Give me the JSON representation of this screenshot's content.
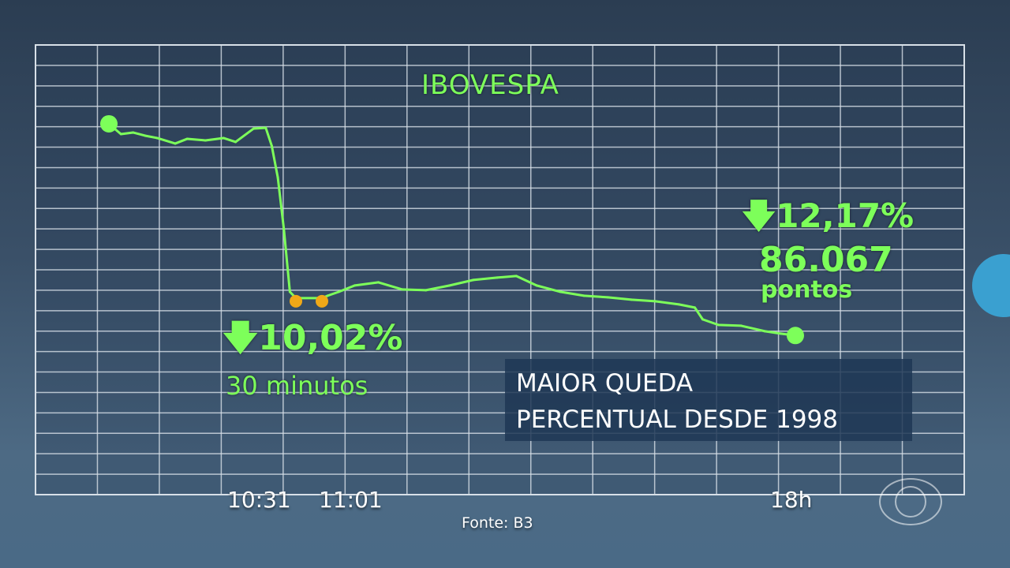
{
  "chart_data": {
    "type": "line",
    "title": "IBOVESPA",
    "xlabel": "",
    "ylabel": "",
    "x_tick_labels": [
      "10:31",
      "11:01",
      "18h"
    ],
    "grid": true,
    "ylim": [
      77100,
      102440
    ],
    "series": [
      {
        "color": "#7dff5a",
        "points": [
          [
            "10:00",
            97996
          ],
          [
            "10:02",
            97418
          ],
          [
            "10:04",
            97507
          ],
          [
            "10:06",
            97329
          ],
          [
            "10:08",
            97196
          ],
          [
            "10:11",
            96885
          ],
          [
            "10:13",
            97152
          ],
          [
            "10:16",
            97063
          ],
          [
            "10:19",
            97196
          ],
          [
            "10:21",
            96974
          ],
          [
            "10:24",
            97729
          ],
          [
            "10:26",
            97774
          ],
          [
            "10:27",
            96752
          ],
          [
            "10:28",
            94974
          ],
          [
            "10:29",
            92085
          ],
          [
            "10:30",
            88530
          ],
          [
            "10:31",
            88177
          ],
          [
            "11:01",
            88177
          ],
          [
            "11:06",
            88308
          ],
          [
            "11:16",
            88530
          ],
          [
            "11:30",
            88886
          ],
          [
            "11:51",
            89063
          ],
          [
            "12:12",
            88663
          ],
          [
            "12:33",
            88619
          ],
          [
            "12:54",
            88886
          ],
          [
            "13:15",
            89197
          ],
          [
            "13:36",
            89330
          ],
          [
            "13:53",
            89419
          ],
          [
            "14:11",
            88886
          ],
          [
            "14:32",
            88530
          ],
          [
            "14:53",
            88308
          ],
          [
            "15:14",
            88219
          ],
          [
            "15:35",
            88085
          ],
          [
            "15:56",
            87996
          ],
          [
            "16:17",
            87819
          ],
          [
            "16:31",
            87641
          ],
          [
            "16:38",
            86974
          ],
          [
            "16:52",
            86663
          ],
          [
            "17:12",
            86618
          ],
          [
            "17:33",
            86307
          ],
          [
            "17:47",
            86174
          ],
          [
            "18:00",
            86067
          ]
        ]
      }
    ],
    "halt_markers": [
      "10:31",
      "11:01"
    ],
    "halt_color": "#f0a818"
  },
  "annotations": {
    "halt_change": "10,02%",
    "halt_duration": "30 minutos",
    "close_change": "12,17%",
    "close_points": "86.067",
    "close_unit": "pontos",
    "note_line1": "MAIOR QUEDA",
    "note_line2": "PERCENTUAL DESDE 1998",
    "source": "Fonte: B3"
  },
  "icons": {
    "down_arrow": "arrow-down-icon",
    "broadcaster_logo": "globo-logo"
  }
}
